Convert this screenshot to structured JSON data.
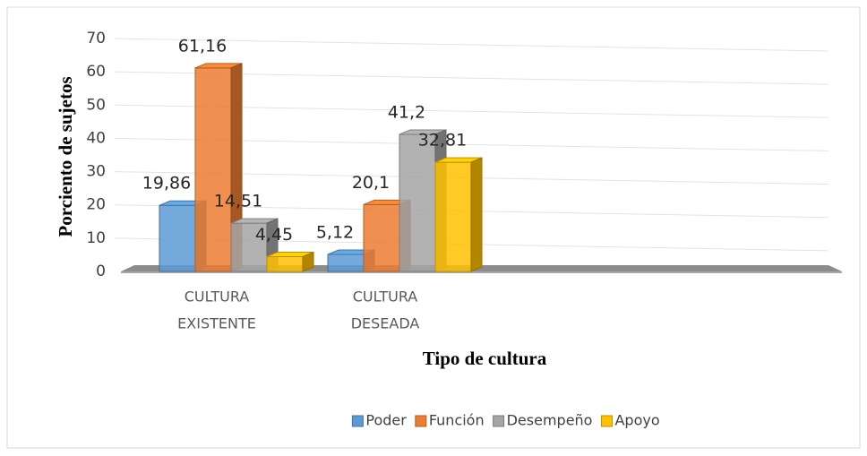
{
  "chart_data": {
    "type": "bar3d",
    "x_label": "Tipo de cultura",
    "y_label": "Porciento de sujetos",
    "categories": [
      [
        "CULTURA",
        "EXISTENTE"
      ],
      [
        "CULTURA",
        "DESEADA"
      ]
    ],
    "series": [
      {
        "name": "Poder",
        "color": "#5b9bd5",
        "values": [
          19.86,
          5.12
        ],
        "value_labels": [
          "19,86",
          "5,12"
        ]
      },
      {
        "name": "Función",
        "color": "#ed7d31",
        "values": [
          61.16,
          20.1
        ],
        "value_labels": [
          "61,16",
          "20,1"
        ]
      },
      {
        "name": "Desempeño",
        "color": "#a5a5a5",
        "values": [
          14.51,
          41.2
        ],
        "value_labels": [
          "14,51",
          "41,2"
        ]
      },
      {
        "name": "Apoyo",
        "color": "#ffc000",
        "values": [
          4.45,
          32.81
        ],
        "value_labels": [
          "4,45",
          "32,81"
        ]
      }
    ],
    "ylim": [
      0,
      70
    ],
    "yticks": [
      0,
      10,
      20,
      30,
      40,
      50,
      60,
      70
    ],
    "grid": true,
    "legend": "bottom"
  }
}
